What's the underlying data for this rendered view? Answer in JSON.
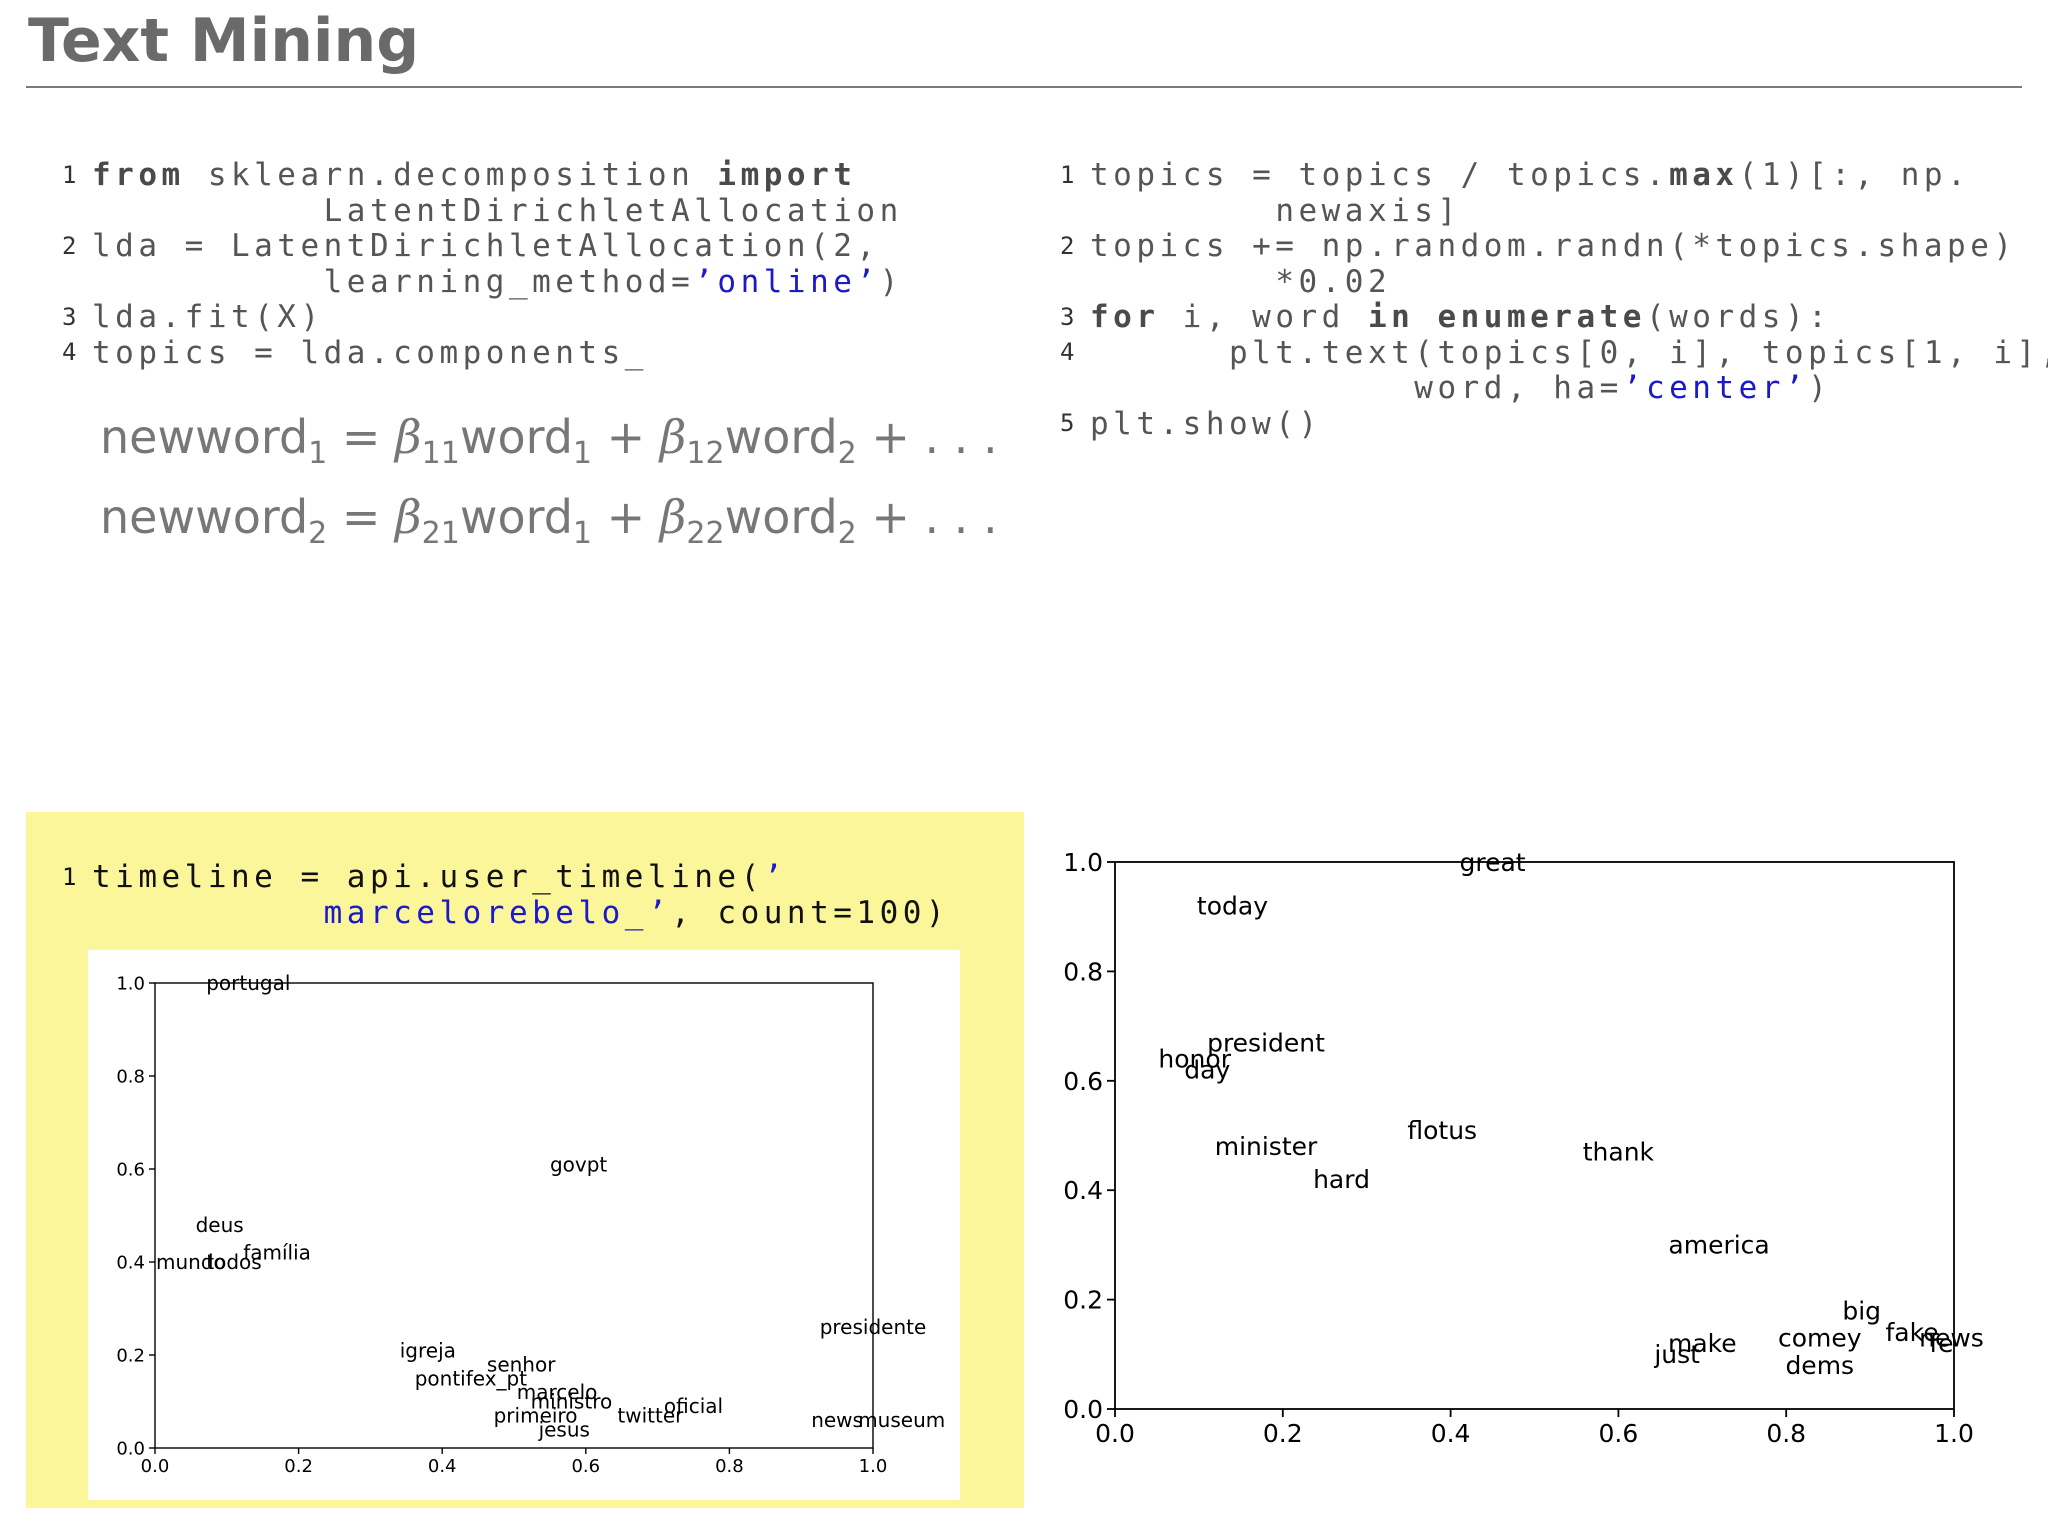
{
  "slide": {
    "title": "Text Mining"
  },
  "code_left": {
    "line_numbers": [
      "1",
      "2",
      "3",
      "4"
    ],
    "l1_from": "from",
    "l1_mid": " sklearn.decomposition ",
    "l1_import": "import",
    "l1_cont": "LatentDirichletAllocation",
    "l2_a": "lda = LatentDirichletAllocation(2,",
    "l2_b": "learning_method=",
    "l2_str": "’online’",
    "l2_end": ")",
    "l3": "lda.fit(X)",
    "l4": "topics = lda.components_"
  },
  "equations": {
    "eq1": {
      "lhs": "newword",
      "lhs_sub": "1",
      "beta_a": "β",
      "sub_a": "11",
      "word_a": "word",
      "wsub_a": "1",
      "beta_b": "β",
      "sub_b": "12",
      "word_b": "word",
      "wsub_b": "2",
      "tail": "+ . . ."
    },
    "eq2": {
      "lhs": "newword",
      "lhs_sub": "2",
      "beta_a": "β",
      "sub_a": "21",
      "word_a": "word",
      "wsub_a": "1",
      "beta_b": "β",
      "sub_b": "22",
      "word_b": "word",
      "wsub_b": "2",
      "tail": "+ . . ."
    }
  },
  "code_right": {
    "line_numbers": [
      "1",
      "2",
      "3",
      "4",
      "5"
    ],
    "l1_a": "topics = topics / topics.",
    "l1_max": "max",
    "l1_b": "(1)[:, np.",
    "l1_cont": "newaxis]",
    "l2_a": "topics += np.random.randn(*topics.shape)",
    "l2_cont": "*0.02",
    "l3_for": "for",
    "l3_mid": " i, word ",
    "l3_in": "in",
    "l3_sp": " ",
    "l3_enum": "enumerate",
    "l3_end": "(words):",
    "l4_a": "plt.text(topics[0, i], topics[1, i],",
    "l4_b": "word, ha=",
    "l4_str": "’center’",
    "l4_end": ")",
    "l5": "plt.show()"
  },
  "code_bottom": {
    "line_numbers": [
      "1"
    ],
    "l1_a": "timeline = api.user_timeline(",
    "l1_str1": "’",
    "l1_str2": "marcelorebelo_’",
    "l1_end": ", count=100)"
  },
  "chart_data": [
    {
      "type": "scatter",
      "xlim": [
        0.0,
        1.0
      ],
      "ylim": [
        0.0,
        1.0
      ],
      "xticks": [
        "0.0",
        "0.2",
        "0.4",
        "0.6",
        "0.8",
        "1.0"
      ],
      "yticks": [
        "0.0",
        "0.2",
        "0.4",
        "0.6",
        "0.8",
        "1.0"
      ],
      "points": [
        {
          "label": "portugal",
          "x": 0.13,
          "y": 1.0
        },
        {
          "label": "govpt",
          "x": 0.59,
          "y": 0.61
        },
        {
          "label": "deus",
          "x": 0.09,
          "y": 0.48
        },
        {
          "label": "família",
          "x": 0.17,
          "y": 0.42
        },
        {
          "label": "mundo",
          "x": 0.05,
          "y": 0.4
        },
        {
          "label": "todos",
          "x": 0.11,
          "y": 0.4
        },
        {
          "label": "presidente",
          "x": 1.0,
          "y": 0.26
        },
        {
          "label": "igreja",
          "x": 0.38,
          "y": 0.21
        },
        {
          "label": "senhor",
          "x": 0.51,
          "y": 0.18
        },
        {
          "label": "pontifex_pt",
          "x": 0.44,
          "y": 0.15
        },
        {
          "label": "marcelo",
          "x": 0.56,
          "y": 0.12
        },
        {
          "label": "ministro",
          "x": 0.58,
          "y": 0.1
        },
        {
          "label": "oficial",
          "x": 0.75,
          "y": 0.09
        },
        {
          "label": "twitter",
          "x": 0.69,
          "y": 0.07
        },
        {
          "label": "primeiro",
          "x": 0.53,
          "y": 0.07
        },
        {
          "label": "jesus",
          "x": 0.57,
          "y": 0.04
        },
        {
          "label": "news",
          "x": 0.95,
          "y": 0.06
        },
        {
          "label": "museum",
          "x": 1.04,
          "y": 0.06
        }
      ]
    },
    {
      "type": "scatter",
      "xlim": [
        0.0,
        1.0
      ],
      "ylim": [
        0.0,
        1.0
      ],
      "xticks": [
        "0.0",
        "0.2",
        "0.4",
        "0.6",
        "0.8",
        "1.0"
      ],
      "yticks": [
        "0.0",
        "0.2",
        "0.4",
        "0.6",
        "0.8",
        "1.0"
      ],
      "points": [
        {
          "label": "great",
          "x": 0.45,
          "y": 1.0
        },
        {
          "label": "today",
          "x": 0.14,
          "y": 0.92
        },
        {
          "label": "president",
          "x": 0.18,
          "y": 0.67
        },
        {
          "label": "honor",
          "x": 0.095,
          "y": 0.64
        },
        {
          "label": "day",
          "x": 0.11,
          "y": 0.62
        },
        {
          "label": "flotus",
          "x": 0.39,
          "y": 0.51
        },
        {
          "label": "minister",
          "x": 0.18,
          "y": 0.48
        },
        {
          "label": "thank",
          "x": 0.6,
          "y": 0.47
        },
        {
          "label": "hard",
          "x": 0.27,
          "y": 0.42
        },
        {
          "label": "america",
          "x": 0.72,
          "y": 0.3
        },
        {
          "label": "big",
          "x": 0.89,
          "y": 0.18
        },
        {
          "label": "fake",
          "x": 0.95,
          "y": 0.14
        },
        {
          "label": "news",
          "x": 0.997,
          "y": 0.13
        },
        {
          "label": "fe",
          "x": 0.985,
          "y": 0.12
        },
        {
          "label": "comey",
          "x": 0.84,
          "y": 0.13
        },
        {
          "label": "make",
          "x": 0.7,
          "y": 0.12
        },
        {
          "label": "just",
          "x": 0.67,
          "y": 0.1
        },
        {
          "label": "dems",
          "x": 0.84,
          "y": 0.08
        }
      ]
    }
  ]
}
